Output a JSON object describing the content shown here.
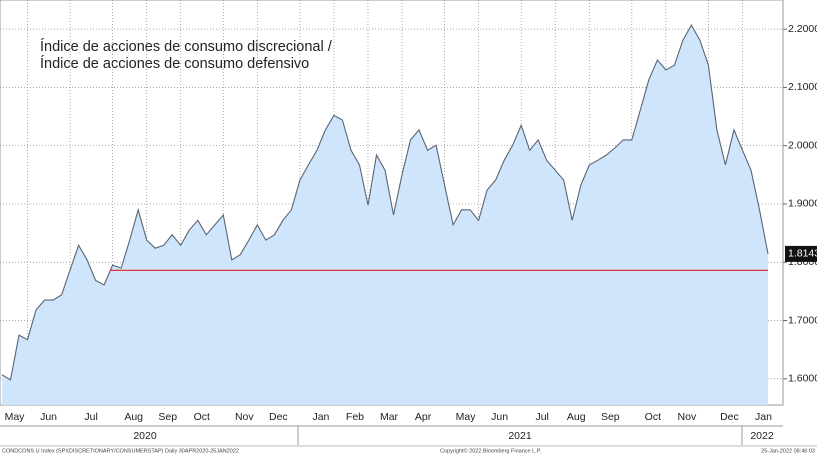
{
  "chart_data": {
    "type": "area",
    "title": [
      "Índice de acciones de consumo discrecional /",
      "Índice de acciones de consumo defensivo"
    ],
    "categories": [
      null,
      "May",
      null,
      null,
      null,
      "Jun",
      null,
      null,
      null,
      null,
      "Jul",
      null,
      null,
      null,
      null,
      "Aug",
      null,
      null,
      null,
      "Sep",
      null,
      null,
      null,
      "Oct",
      null,
      null,
      null,
      null,
      "Nov",
      null,
      null,
      null,
      "Dec",
      null,
      null,
      null,
      null,
      "Jan",
      null,
      null,
      null,
      "Feb",
      null,
      null,
      null,
      "Mar",
      null,
      null,
      null,
      "Apr",
      null,
      null,
      null,
      null,
      "May",
      null,
      null,
      null,
      "Jun",
      null,
      null,
      null,
      null,
      "Jul",
      null,
      null,
      null,
      "Aug",
      null,
      null,
      null,
      "Sep",
      null,
      null,
      null,
      null,
      "Oct",
      null,
      null,
      null,
      "Nov",
      null,
      null,
      null,
      null,
      "Dec",
      null,
      null,
      null,
      "Jan",
      null
    ],
    "x_group_labels": [
      "2020",
      "2021",
      "2022"
    ],
    "series": [
      {
        "name": "CONDCONS",
        "color": "#5a6573",
        "fill": "#cfe5fb",
        "values": [
          1.607,
          1.598,
          1.675,
          1.667,
          1.718,
          1.735,
          1.735,
          1.744,
          1.787,
          1.829,
          1.804,
          1.769,
          1.761,
          1.795,
          1.79,
          1.838,
          1.89,
          1.838,
          1.824,
          1.829,
          1.847,
          1.829,
          1.855,
          1.872,
          1.847,
          1.864,
          1.881,
          1.804,
          1.813,
          1.838,
          1.864,
          1.838,
          1.847,
          1.872,
          1.89,
          1.941,
          1.967,
          1.992,
          2.027,
          2.052,
          2.044,
          1.992,
          1.967,
          1.898,
          1.984,
          1.958,
          1.881,
          1.95,
          2.01,
          2.027,
          1.992,
          2.001,
          1.932,
          1.864,
          1.89,
          1.89,
          1.872,
          1.924,
          1.941,
          1.975,
          2.001,
          2.035,
          1.992,
          2.01,
          1.975,
          1.958,
          1.941,
          1.872,
          1.932,
          1.967,
          1.975,
          1.984,
          1.996,
          2.01,
          2.01,
          2.061,
          2.113,
          2.147,
          2.13,
          2.138,
          2.181,
          2.207,
          2.181,
          2.138,
          2.027,
          1.967,
          2.027,
          1.992,
          1.958,
          1.89,
          1.8143
        ]
      }
    ],
    "current_label": "1.8143",
    "reference_line": {
      "value": 1.786,
      "color": "#e0353a"
    },
    "ylim": [
      1.555,
      2.25
    ],
    "yticks": [
      {
        "value": 1.6,
        "label": "1.6000"
      },
      {
        "value": 1.7,
        "label": "1.7000"
      },
      {
        "value": 1.8,
        "label": "1.8000"
      },
      {
        "value": 1.9,
        "label": "1.9000"
      },
      {
        "value": 2.0,
        "label": "2.0000"
      },
      {
        "value": 2.1,
        "label": "2.1000"
      },
      {
        "value": 2.2,
        "label": "2.2000"
      }
    ],
    "grid": true,
    "footer": [
      "CONDCONS U Index (SPXDISCRETIONARY/CONSUMERSTAP) Daily 30APR2020-25JAN2022",
      "Copyright© 2022 Bloomberg Finance L.P.",
      "25-Jan-2022 08:46:03"
    ]
  }
}
